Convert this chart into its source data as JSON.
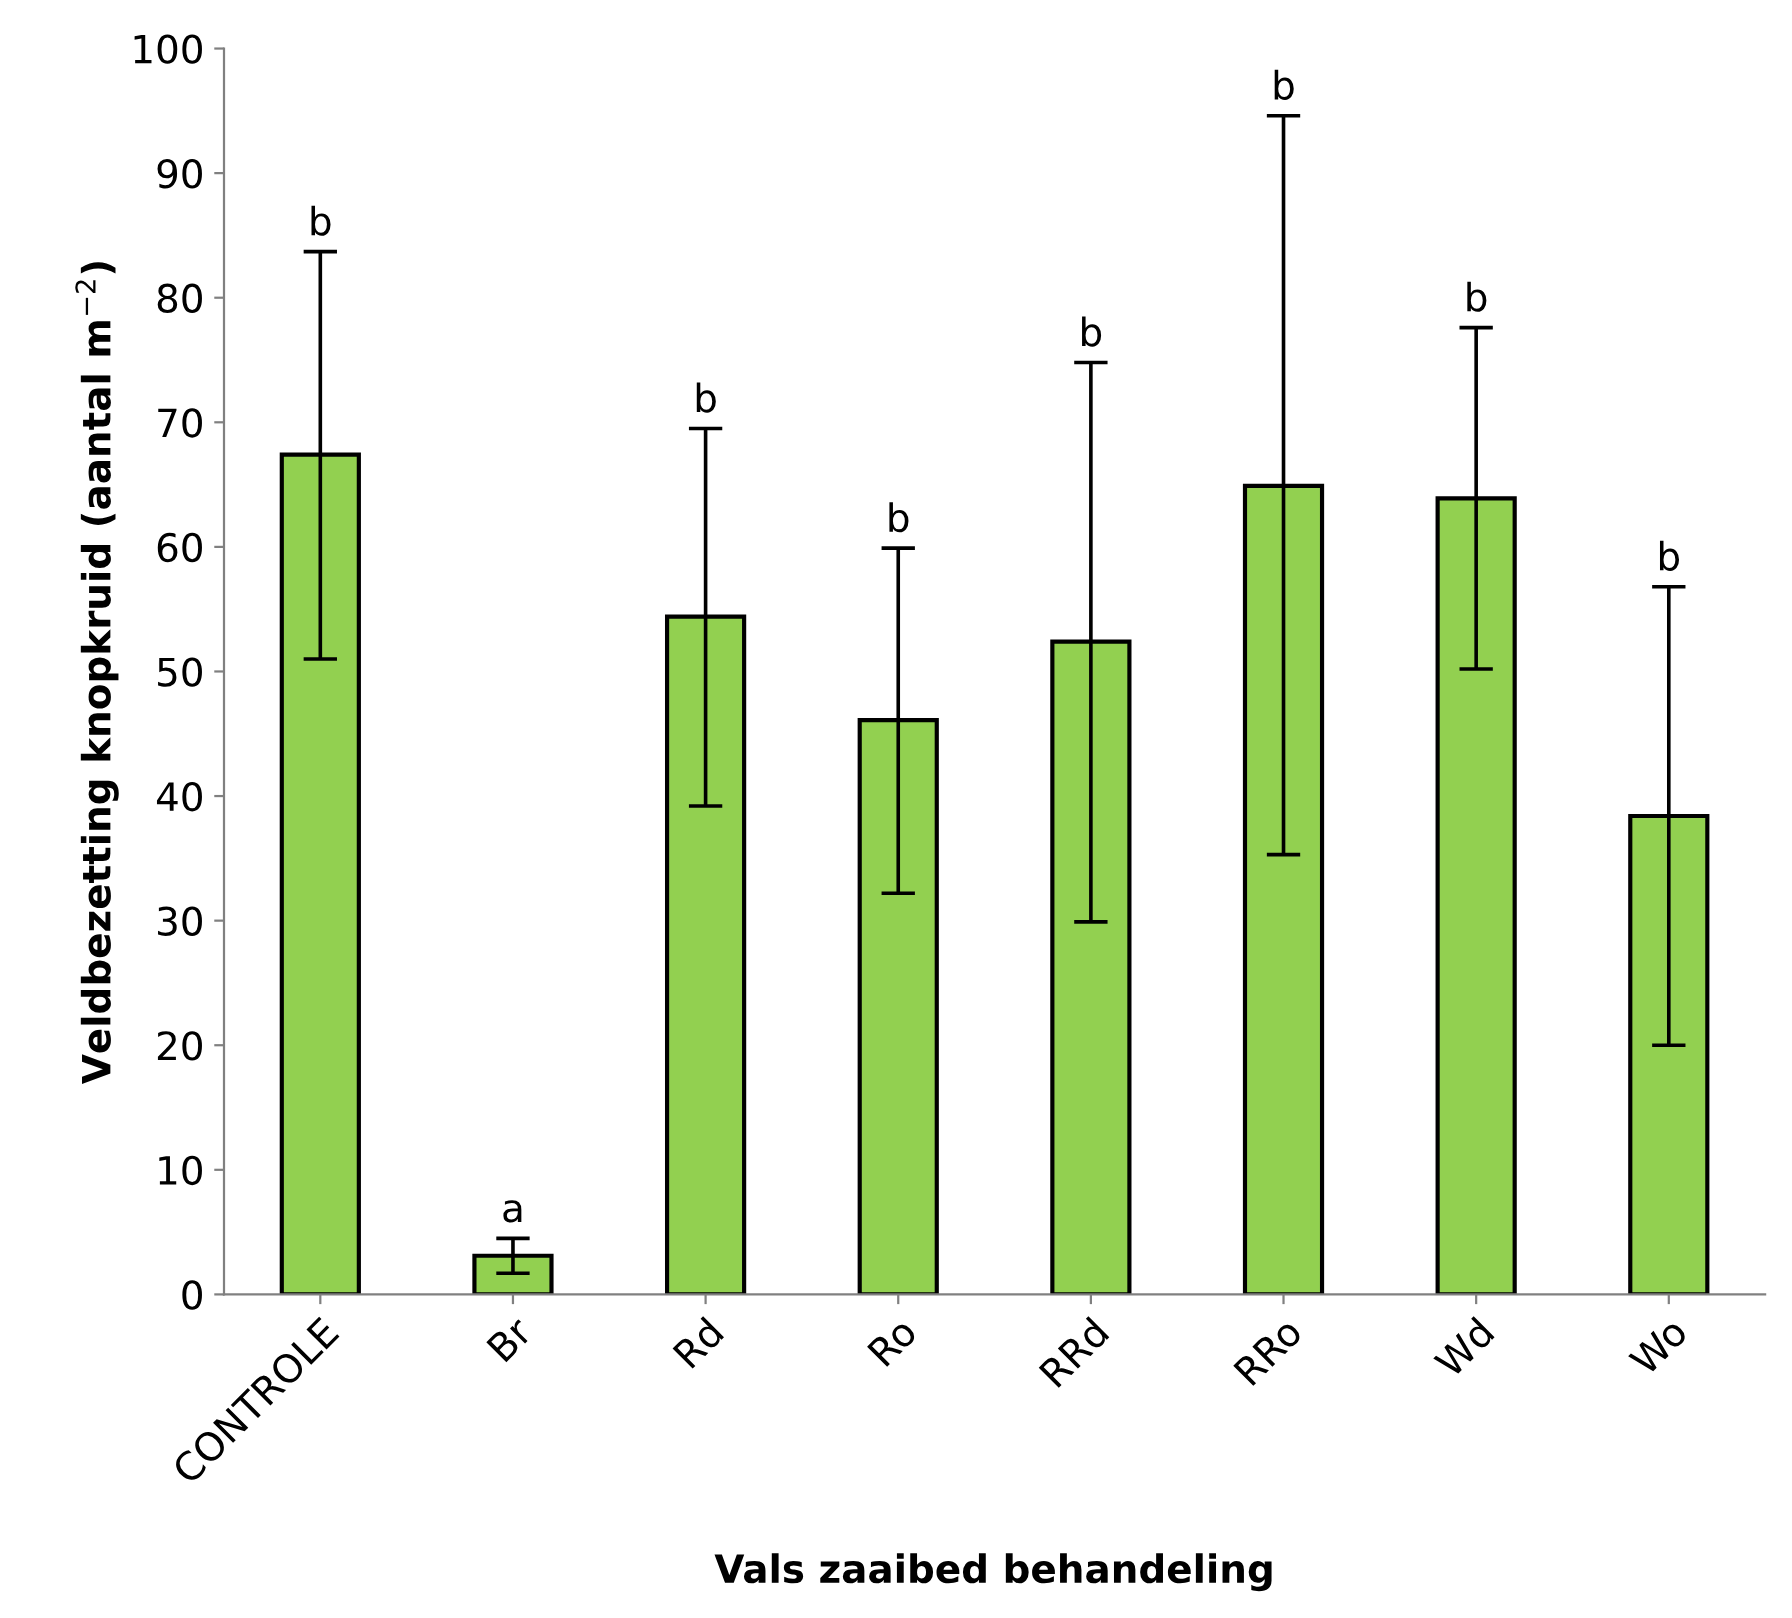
{
  "chart_data": {
    "type": "bar",
    "xlabel": "Vals zaaibed behandeling",
    "ylabel": "Veldbezetting knopkruid (aantal m$^{−2}$)",
    "categories": [
      "CONTROLE",
      "Br",
      "Rd",
      "Ro",
      "RRd",
      "RRo",
      "Wd",
      "Wo"
    ],
    "values": [
      67.4,
      3.1,
      54.4,
      46.1,
      52.4,
      64.9,
      63.9,
      38.4
    ],
    "errors": [
      [
        51.0,
        83.7
      ],
      [
        1.7,
        4.5
      ],
      [
        39.2,
        69.5
      ],
      [
        32.2,
        59.9
      ],
      [
        29.9,
        74.8
      ],
      [
        35.3,
        94.6
      ],
      [
        50.2,
        77.6
      ],
      [
        20.0,
        56.8
      ]
    ],
    "color": "#92d050",
    "ylim": [
      0,
      100
    ],
    "yticks": [
      0,
      10,
      20,
      30,
      40,
      50,
      60,
      70,
      80,
      90,
      100
    ],
    "grid": false,
    "legend": false,
    "annotations": [
      {
        "text": "b",
        "x": "CONTROLE",
        "y": 83.7
      },
      {
        "text": "a",
        "x": "Br",
        "y": 4.5
      },
      {
        "text": "b",
        "x": "Rd",
        "y": 69.5
      },
      {
        "text": "b",
        "x": "Ro",
        "y": 59.9
      },
      {
        "text": "b",
        "x": "RRd",
        "y": 74.8
      },
      {
        "text": "b",
        "x": "RRo",
        "y": 94.6
      },
      {
        "text": "b",
        "x": "Wd",
        "y": 77.6
      },
      {
        "text": "b",
        "x": "Wo",
        "y": 56.8
      }
    ]
  }
}
